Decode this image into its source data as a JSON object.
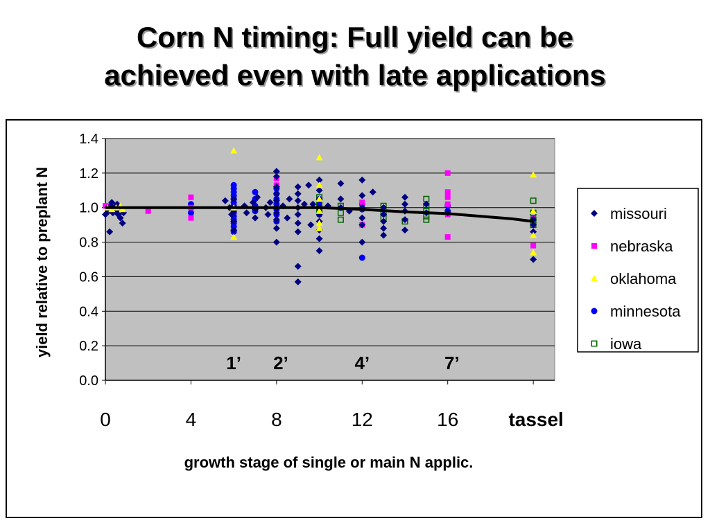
{
  "slide": {
    "title_line1": "Corn N timing:  Full yield can be",
    "title_line2": "achieved even with late applications"
  },
  "chart_data": {
    "type": "scatter",
    "ylabel": "yield relative to preplant N",
    "xlabel": "growth stage of single or main N applic.",
    "ylim": [
      0,
      1.4
    ],
    "xlim": [
      0,
      21
    ],
    "y_ticks": [
      "0.0",
      "0.2",
      "0.4",
      "0.6",
      "0.8",
      "1.0",
      "1.2",
      "1.4"
    ],
    "x_ticks": [
      {
        "x": 0,
        "label": "0"
      },
      {
        "x": 4,
        "label": "4"
      },
      {
        "x": 8,
        "label": "8"
      },
      {
        "x": 12,
        "label": "12"
      },
      {
        "x": 16,
        "label": "16"
      },
      {
        "x": 20,
        "label": "tassel",
        "bold": true
      }
    ],
    "stage_annotations": [
      {
        "x": 6,
        "y": 0.1,
        "label": "1’"
      },
      {
        "x": 8.2,
        "y": 0.1,
        "label": "2’"
      },
      {
        "x": 12,
        "y": 0.1,
        "label": "4’"
      },
      {
        "x": 16.2,
        "y": 0.1,
        "label": "7’"
      }
    ],
    "grid": "horizontal",
    "plot_background": "#c0c0c0",
    "legend_position": "right",
    "trend_line": [
      [
        0,
        1.0
      ],
      [
        8,
        1.0
      ],
      [
        10,
        1.0
      ],
      [
        12,
        0.99
      ],
      [
        14,
        0.975
      ],
      [
        16,
        0.965
      ],
      [
        17,
        0.955
      ],
      [
        18,
        0.945
      ],
      [
        19,
        0.935
      ],
      [
        20,
        0.92
      ]
    ],
    "series": [
      {
        "name": "missouri",
        "marker": "diamond",
        "color": "#000080",
        "points": [
          [
            0,
            0.96
          ],
          [
            0.1,
            1.0
          ],
          [
            0.15,
            0.98
          ],
          [
            0.2,
            0.86
          ],
          [
            0.25,
            1.01
          ],
          [
            0.3,
            1.03
          ],
          [
            0.35,
            0.97
          ],
          [
            0.4,
            1.0
          ],
          [
            0.5,
            0.98
          ],
          [
            0.55,
            1.02
          ],
          [
            0.6,
            0.96
          ],
          [
            0.7,
            0.94
          ],
          [
            0.8,
            0.91
          ],
          [
            0.85,
            0.97
          ],
          [
            5.6,
            1.04
          ],
          [
            5.8,
            1.0
          ],
          [
            5.9,
            0.96
          ],
          [
            6,
            0.92
          ],
          [
            6,
            1.0
          ],
          [
            6,
            0.98
          ],
          [
            6,
            1.05
          ],
          [
            6,
            0.87
          ],
          [
            6.5,
            1.01
          ],
          [
            6.6,
            0.97
          ],
          [
            6.9,
            1.03
          ],
          [
            7,
            0.99
          ],
          [
            7,
            0.94
          ],
          [
            7.1,
            1.06
          ],
          [
            7.5,
            1.0
          ],
          [
            7.6,
            0.96
          ],
          [
            7.7,
            1.03
          ],
          [
            8,
            1.21
          ],
          [
            8,
            1.18
          ],
          [
            8,
            1.12
          ],
          [
            8,
            1.08
          ],
          [
            8,
            1.04
          ],
          [
            8,
            1.0
          ],
          [
            8,
            0.97
          ],
          [
            8,
            0.93
          ],
          [
            8,
            0.88
          ],
          [
            8,
            0.8
          ],
          [
            8.3,
            1.01
          ],
          [
            8.5,
            0.94
          ],
          [
            8.6,
            1.05
          ],
          [
            9,
            1.12
          ],
          [
            9,
            1.08
          ],
          [
            9,
            1.04
          ],
          [
            9,
            1.0
          ],
          [
            9,
            0.96
          ],
          [
            9,
            0.91
          ],
          [
            9,
            0.86
          ],
          [
            9,
            0.66
          ],
          [
            9,
            0.57
          ],
          [
            9.3,
            1.02
          ],
          [
            9.5,
            1.13
          ],
          [
            9.6,
            0.9
          ],
          [
            9.7,
            1.02
          ],
          [
            10,
            1.16
          ],
          [
            10,
            1.1
          ],
          [
            10,
            1.05
          ],
          [
            10,
            1.0
          ],
          [
            10,
            0.96
          ],
          [
            10,
            0.92
          ],
          [
            10,
            0.87
          ],
          [
            10,
            0.82
          ],
          [
            10,
            0.75
          ],
          [
            10.4,
            1.01
          ],
          [
            11,
            1.14
          ],
          [
            11,
            1.05
          ],
          [
            11,
            1.0
          ],
          [
            11.4,
            0.98
          ],
          [
            12,
            1.16
          ],
          [
            12,
            1.07
          ],
          [
            12,
            1.0
          ],
          [
            12,
            0.94
          ],
          [
            12,
            0.9
          ],
          [
            12,
            0.8
          ],
          [
            12.5,
            1.09
          ],
          [
            13,
            1.0
          ],
          [
            13,
            0.96
          ],
          [
            13,
            0.92
          ],
          [
            13,
            0.88
          ],
          [
            13,
            0.84
          ],
          [
            14,
            1.06
          ],
          [
            14,
            1.02
          ],
          [
            14,
            0.98
          ],
          [
            14,
            0.93
          ],
          [
            14,
            0.87
          ],
          [
            15,
            1.02
          ],
          [
            15,
            0.97
          ],
          [
            16,
            0.97
          ],
          [
            20,
            0.93
          ],
          [
            20,
            0.9
          ],
          [
            20,
            0.86
          ],
          [
            20,
            0.7
          ]
        ]
      },
      {
        "name": "nebraska",
        "marker": "square",
        "color": "#ff00ff",
        "points": [
          [
            0,
            1.01
          ],
          [
            0.2,
            1.01
          ],
          [
            2,
            0.98
          ],
          [
            4,
            1.06
          ],
          [
            4,
            1.0
          ],
          [
            4,
            0.94
          ],
          [
            8,
            1.17
          ],
          [
            8,
            1.13
          ],
          [
            12,
            1.03
          ],
          [
            12,
            0.9
          ],
          [
            16,
            1.2
          ],
          [
            16,
            1.09
          ],
          [
            16,
            1.06
          ],
          [
            16,
            1.02
          ],
          [
            16,
            0.96
          ],
          [
            16,
            0.83
          ],
          [
            20,
            0.94
          ],
          [
            20,
            0.78
          ]
        ]
      },
      {
        "name": "oklahoma",
        "marker": "triangle",
        "color": "#ffff00",
        "points": [
          [
            0.1,
            1.0
          ],
          [
            0.3,
            0.99
          ],
          [
            0.5,
            1.0
          ],
          [
            0.7,
            1.01
          ],
          [
            0.8,
            0.99
          ],
          [
            6,
            1.33
          ],
          [
            6,
            1.0
          ],
          [
            6,
            0.83
          ],
          [
            10,
            1.29
          ],
          [
            10,
            1.13
          ],
          [
            10,
            1.05
          ],
          [
            10,
            0.98
          ],
          [
            10,
            0.91
          ],
          [
            10,
            0.88
          ],
          [
            20,
            1.19
          ],
          [
            20,
            0.98
          ],
          [
            20,
            0.84
          ],
          [
            20,
            0.74
          ]
        ]
      },
      {
        "name": "minnesota",
        "marker": "circle",
        "color": "#0000ff",
        "points": [
          [
            4,
            1.02
          ],
          [
            4,
            0.97
          ],
          [
            6,
            1.13
          ],
          [
            6,
            1.11
          ],
          [
            6,
            1.09
          ],
          [
            6,
            1.07
          ],
          [
            6,
            1.05
          ],
          [
            6,
            1.03
          ],
          [
            6,
            1.01
          ],
          [
            6,
            0.99
          ],
          [
            6,
            0.97
          ],
          [
            6,
            0.95
          ],
          [
            6,
            0.93
          ],
          [
            6,
            0.91
          ],
          [
            6,
            0.89
          ],
          [
            6,
            0.86
          ],
          [
            7,
            1.09
          ],
          [
            7,
            1.05
          ],
          [
            7,
            1.01
          ],
          [
            7,
            0.98
          ],
          [
            8,
            1.11
          ],
          [
            8,
            1.08
          ],
          [
            8,
            1.05
          ],
          [
            8,
            1.02
          ],
          [
            8,
            0.99
          ],
          [
            8,
            0.96
          ],
          [
            8,
            0.92
          ],
          [
            10,
            1.05
          ],
          [
            10,
            1.02
          ],
          [
            10,
            0.99
          ],
          [
            10,
            0.96
          ],
          [
            12,
            1.02
          ],
          [
            12,
            0.99
          ],
          [
            12,
            0.71
          ],
          [
            16,
            1.01
          ],
          [
            16,
            0.98
          ]
        ]
      },
      {
        "name": "iowa",
        "marker": "open-square",
        "color": "#006400",
        "points": [
          [
            10,
            1.06
          ],
          [
            10,
            1.02
          ],
          [
            10,
            0.98
          ],
          [
            11,
            1.01
          ],
          [
            11,
            0.97
          ],
          [
            11,
            0.93
          ],
          [
            13,
            1.01
          ],
          [
            13,
            0.97
          ],
          [
            13,
            0.94
          ],
          [
            14,
            0.92
          ],
          [
            15,
            1.05
          ],
          [
            15,
            1.01
          ],
          [
            15,
            0.98
          ],
          [
            15,
            0.95
          ],
          [
            15,
            0.93
          ],
          [
            20,
            1.04
          ],
          [
            20,
            0.97
          ],
          [
            20,
            0.93
          ],
          [
            20,
            0.9
          ]
        ]
      }
    ]
  }
}
